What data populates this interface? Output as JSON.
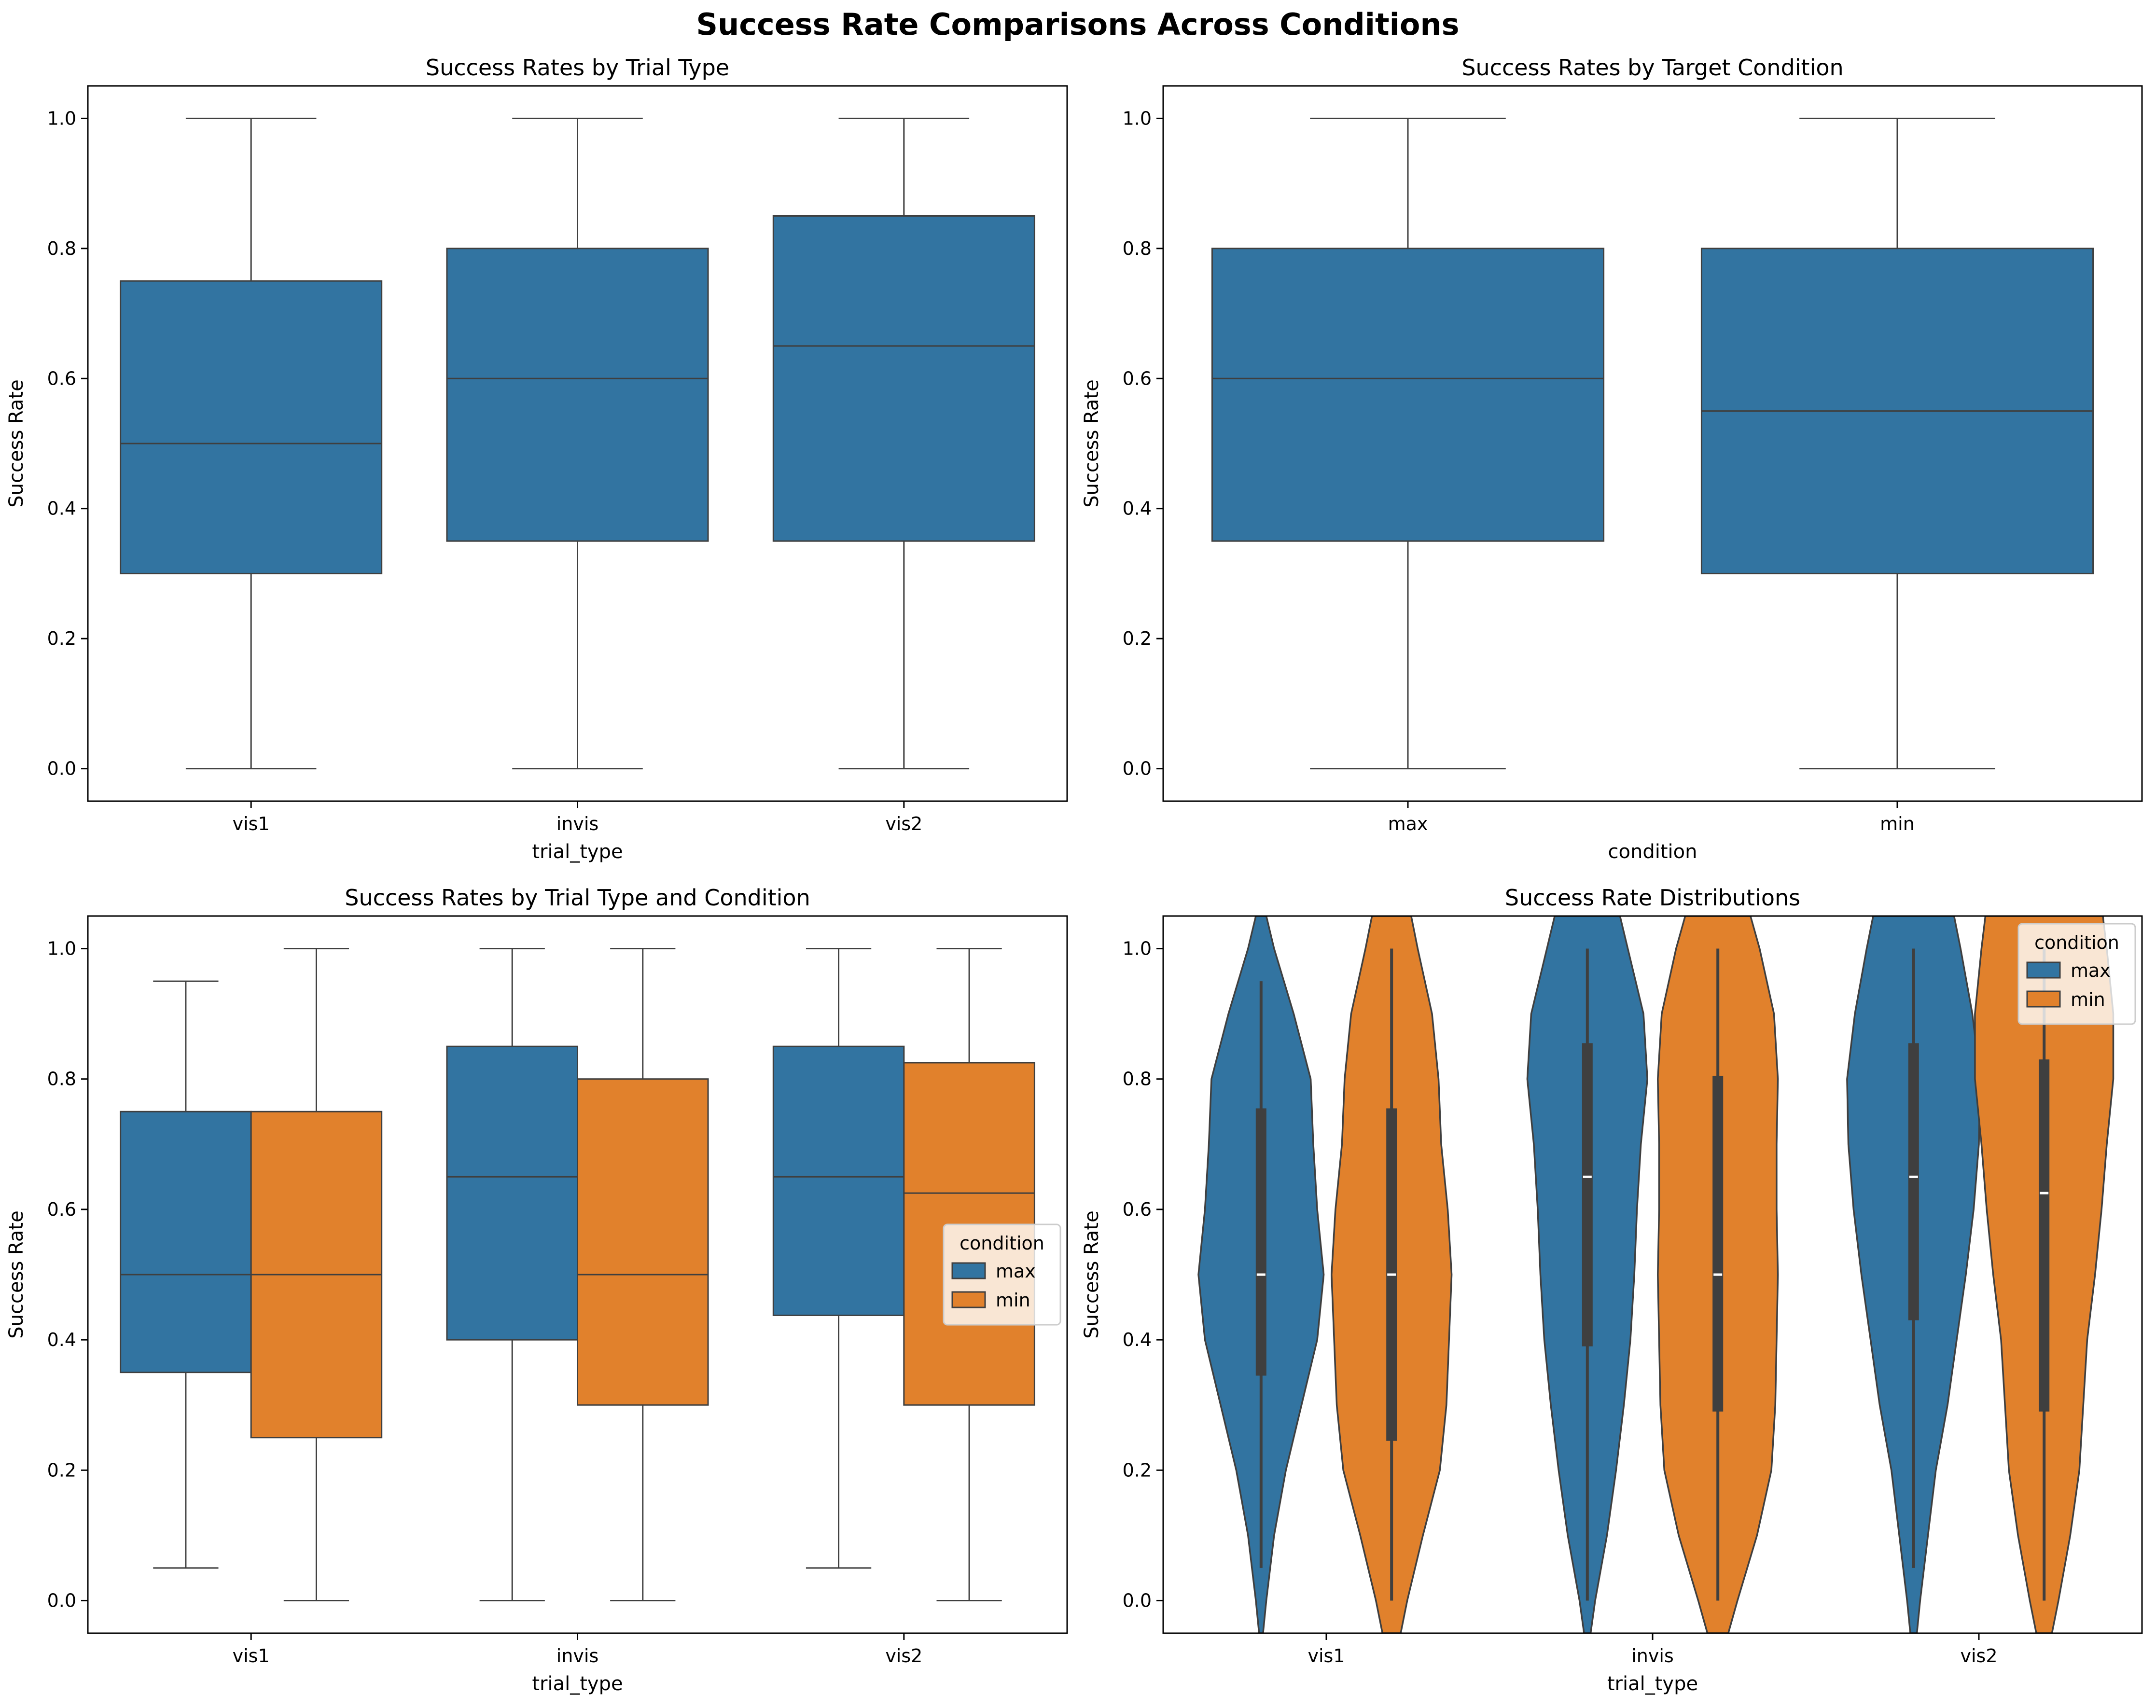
{
  "figure": {
    "title": "Success Rate Comparisons Across Conditions",
    "colors": {
      "max": "#3274a1",
      "min": "#e1812c",
      "line": "#3f3f3f",
      "axis": "#000000"
    }
  },
  "chart_data": [
    {
      "type": "box",
      "title": "Success Rates by Trial Type",
      "xlabel": "trial_type",
      "ylabel": "Success Rate",
      "ylim": [
        -0.05,
        1.05
      ],
      "yticks": [
        0.0,
        0.2,
        0.4,
        0.6,
        0.8,
        1.0
      ],
      "ytick_labels": [
        "0.0",
        "0.2",
        "0.4",
        "0.6",
        "0.8",
        "1.0"
      ],
      "categories": [
        "vis1",
        "invis",
        "vis2"
      ],
      "series": [
        {
          "color": "#3274a1",
          "stats": [
            {
              "min": 0.0,
              "q1": 0.3,
              "median": 0.5,
              "q3": 0.75,
              "max": 1.0
            },
            {
              "min": 0.0,
              "q1": 0.35,
              "median": 0.6,
              "q3": 0.8,
              "max": 1.0
            },
            {
              "min": 0.0,
              "q1": 0.35,
              "median": 0.65,
              "q3": 0.85,
              "max": 1.0
            }
          ]
        }
      ],
      "legend": null
    },
    {
      "type": "box",
      "title": "Success Rates by Target Condition",
      "xlabel": "condition",
      "ylabel": "Success Rate",
      "ylim": [
        -0.05,
        1.05
      ],
      "yticks": [
        0.0,
        0.2,
        0.4,
        0.6,
        0.8,
        1.0
      ],
      "ytick_labels": [
        "0.0",
        "0.2",
        "0.4",
        "0.6",
        "0.8",
        "1.0"
      ],
      "categories": [
        "max",
        "min"
      ],
      "series": [
        {
          "color": "#3274a1",
          "stats": [
            {
              "min": 0.0,
              "q1": 0.35,
              "median": 0.6,
              "q3": 0.8,
              "max": 1.0
            },
            {
              "min": 0.0,
              "q1": 0.3,
              "median": 0.55,
              "q3": 0.8,
              "max": 1.0
            }
          ]
        }
      ],
      "legend": null
    },
    {
      "type": "box",
      "title": "Success Rates by Trial Type and Condition",
      "xlabel": "trial_type",
      "ylabel": "Success Rate",
      "ylim": [
        -0.05,
        1.05
      ],
      "yticks": [
        0.0,
        0.2,
        0.4,
        0.6,
        0.8,
        1.0
      ],
      "ytick_labels": [
        "0.0",
        "0.2",
        "0.4",
        "0.6",
        "0.8",
        "1.0"
      ],
      "categories": [
        "vis1",
        "invis",
        "vis2"
      ],
      "series": [
        {
          "name": "max",
          "color": "#3274a1",
          "stats": [
            {
              "min": 0.05,
              "q1": 0.35,
              "median": 0.5,
              "q3": 0.75,
              "max": 0.95
            },
            {
              "min": 0.0,
              "q1": 0.4,
              "median": 0.65,
              "q3": 0.85,
              "max": 1.0
            },
            {
              "min": 0.05,
              "q1": 0.4375,
              "median": 0.65,
              "q3": 0.85,
              "max": 1.0
            }
          ]
        },
        {
          "name": "min",
          "color": "#e1812c",
          "stats": [
            {
              "min": 0.0,
              "q1": 0.25,
              "median": 0.5,
              "q3": 0.75,
              "max": 1.0
            },
            {
              "min": 0.0,
              "q1": 0.3,
              "median": 0.5,
              "q3": 0.8,
              "max": 1.0
            },
            {
              "min": 0.0,
              "q1": 0.3,
              "median": 0.625,
              "q3": 0.825,
              "max": 1.0
            }
          ]
        }
      ],
      "legend": {
        "title": "condition",
        "placement": "center-right",
        "entries": [
          "max",
          "min"
        ]
      }
    },
    {
      "type": "violin",
      "title": "Success Rate Distributions",
      "xlabel": "trial_type",
      "ylabel": "Success Rate",
      "ylim": [
        -0.05,
        1.05
      ],
      "yticks": [
        0.0,
        0.2,
        0.4,
        0.6,
        0.8,
        1.0
      ],
      "ytick_labels": [
        "0.0",
        "0.2",
        "0.4",
        "0.6",
        "0.8",
        "1.0"
      ],
      "categories": [
        "vis1",
        "invis",
        "vis2"
      ],
      "series": [
        {
          "name": "max",
          "color": "#3274a1",
          "violins": [
            {
              "whisker": [
                0.05,
                0.95
              ],
              "q1": 0.345,
              "median": 0.5,
              "q3": 0.755,
              "density": [
                [
                  -0.05,
                  0.03
                ],
                [
                  0.0,
                  0.08
                ],
                [
                  0.1,
                  0.2
                ],
                [
                  0.2,
                  0.38
                ],
                [
                  0.3,
                  0.62
                ],
                [
                  0.4,
                  0.86
                ],
                [
                  0.5,
                  0.96
                ],
                [
                  0.6,
                  0.86
                ],
                [
                  0.7,
                  0.8
                ],
                [
                  0.8,
                  0.76
                ],
                [
                  0.9,
                  0.5
                ],
                [
                  1.0,
                  0.2
                ],
                [
                  1.05,
                  0.08
                ]
              ]
            },
            {
              "whisker": [
                0.0,
                1.0
              ],
              "q1": 0.39,
              "median": 0.65,
              "q3": 0.855,
              "density": [
                [
                  -0.05,
                  0.05
                ],
                [
                  0.0,
                  0.12
                ],
                [
                  0.1,
                  0.3
                ],
                [
                  0.2,
                  0.44
                ],
                [
                  0.3,
                  0.56
                ],
                [
                  0.4,
                  0.66
                ],
                [
                  0.5,
                  0.72
                ],
                [
                  0.6,
                  0.76
                ],
                [
                  0.7,
                  0.82
                ],
                [
                  0.8,
                  0.92
                ],
                [
                  0.9,
                  0.86
                ],
                [
                  1.0,
                  0.62
                ],
                [
                  1.05,
                  0.5
                ]
              ]
            },
            {
              "whisker": [
                0.05,
                1.0
              ],
              "q1": 0.43,
              "median": 0.65,
              "q3": 0.855,
              "density": [
                [
                  -0.05,
                  0.05
                ],
                [
                  0.0,
                  0.1
                ],
                [
                  0.1,
                  0.22
                ],
                [
                  0.2,
                  0.34
                ],
                [
                  0.3,
                  0.52
                ],
                [
                  0.4,
                  0.66
                ],
                [
                  0.5,
                  0.8
                ],
                [
                  0.6,
                  0.92
                ],
                [
                  0.7,
                  1.0
                ],
                [
                  0.8,
                  1.02
                ],
                [
                  0.9,
                  0.9
                ],
                [
                  1.0,
                  0.72
                ],
                [
                  1.05,
                  0.62
                ]
              ]
            }
          ]
        },
        {
          "name": "min",
          "color": "#e1812c",
          "violins": [
            {
              "whisker": [
                0.0,
                1.0
              ],
              "q1": 0.245,
              "median": 0.5,
              "q3": 0.755,
              "density": [
                [
                  -0.05,
                  0.14
                ],
                [
                  0.0,
                  0.24
                ],
                [
                  0.1,
                  0.48
                ],
                [
                  0.2,
                  0.74
                ],
                [
                  0.3,
                  0.84
                ],
                [
                  0.4,
                  0.88
                ],
                [
                  0.5,
                  0.92
                ],
                [
                  0.6,
                  0.86
                ],
                [
                  0.7,
                  0.76
                ],
                [
                  0.8,
                  0.72
                ],
                [
                  0.9,
                  0.62
                ],
                [
                  1.0,
                  0.4
                ],
                [
                  1.05,
                  0.3
                ]
              ]
            },
            {
              "whisker": [
                0.0,
                1.0
              ],
              "q1": 0.29,
              "median": 0.5,
              "q3": 0.805,
              "density": [
                [
                  -0.05,
                  0.16
                ],
                [
                  0.0,
                  0.3
                ],
                [
                  0.1,
                  0.6
                ],
                [
                  0.2,
                  0.82
                ],
                [
                  0.3,
                  0.88
                ],
                [
                  0.4,
                  0.9
                ],
                [
                  0.5,
                  0.92
                ],
                [
                  0.6,
                  0.9
                ],
                [
                  0.7,
                  0.9
                ],
                [
                  0.8,
                  0.92
                ],
                [
                  0.9,
                  0.86
                ],
                [
                  1.0,
                  0.64
                ],
                [
                  1.05,
                  0.5
                ]
              ]
            },
            {
              "whisker": [
                0.0,
                1.0
              ],
              "q1": 0.29,
              "median": 0.625,
              "q3": 0.83,
              "density": [
                [
                  -0.05,
                  0.12
                ],
                [
                  0.0,
                  0.22
                ],
                [
                  0.1,
                  0.4
                ],
                [
                  0.2,
                  0.54
                ],
                [
                  0.3,
                  0.6
                ],
                [
                  0.4,
                  0.66
                ],
                [
                  0.5,
                  0.78
                ],
                [
                  0.6,
                  0.88
                ],
                [
                  0.7,
                  0.96
                ],
                [
                  0.8,
                  1.06
                ],
                [
                  0.9,
                  1.06
                ],
                [
                  1.0,
                  0.96
                ],
                [
                  1.05,
                  0.9
                ]
              ]
            }
          ]
        }
      ],
      "legend": {
        "title": "condition",
        "placement": "top-right",
        "entries": [
          "max",
          "min"
        ]
      }
    }
  ]
}
